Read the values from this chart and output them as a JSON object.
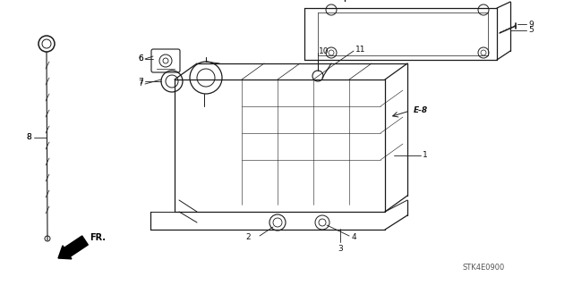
{
  "bg_color": "#ffffff",
  "fig_width": 6.4,
  "fig_height": 3.19,
  "dpi": 100,
  "watermark": "STK4E0900",
  "line_color": "#1a1a1a",
  "label_color": "#111111"
}
